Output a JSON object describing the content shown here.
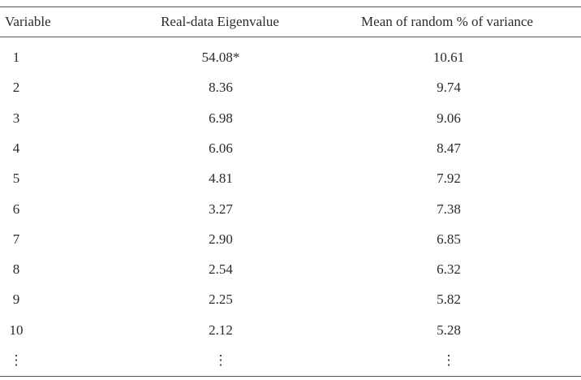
{
  "table": {
    "headers": [
      "Variable",
      "Real-data Eigenvalue",
      "Mean of random % of variance"
    ],
    "rows": [
      [
        "1",
        "54.08*",
        "10.61"
      ],
      [
        "2",
        "8.36",
        "9.74"
      ],
      [
        "3",
        "6.98",
        "9.06"
      ],
      [
        "4",
        "6.06",
        "8.47"
      ],
      [
        "5",
        "4.81",
        "7.92"
      ],
      [
        "6",
        "3.27",
        "7.38"
      ],
      [
        "7",
        "2.90",
        "6.85"
      ],
      [
        "8",
        "2.54",
        "6.32"
      ],
      [
        "9",
        "2.25",
        "5.82"
      ],
      [
        "10",
        "2.12",
        "5.28"
      ],
      [
        "⋮",
        "⋮",
        "⋮"
      ]
    ]
  }
}
